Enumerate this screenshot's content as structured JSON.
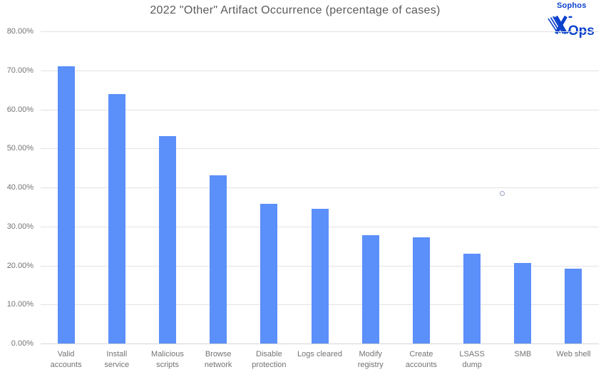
{
  "header": {
    "title": "2022 \"Other\" Artifact Occurrence (percentage of cases)"
  },
  "logo": {
    "brand": "Sophos",
    "x_symbol": "X",
    "suffix": "-Ops"
  },
  "chart_data": {
    "type": "bar",
    "title": "2022 \"Other\" Artifact Occurrence (percentage of cases)",
    "xlabel": "",
    "ylabel": "",
    "categories": [
      "Valid accounts",
      "Install service",
      "Malicious scripts",
      "Browse network",
      "Disable protection",
      "Logs cleared",
      "Modify registry",
      "Create accounts",
      "LSASS dump",
      "SMB",
      "Web shell"
    ],
    "values": [
      71.1,
      63.9,
      53.1,
      43.1,
      35.8,
      34.6,
      27.8,
      27.2,
      23.1,
      20.6,
      19.2
    ],
    "value_unit": "%",
    "ylim": [
      0,
      80
    ],
    "y_tick_step": 10,
    "y_tick_labels": [
      "0.00%",
      "10.00%",
      "20.00%",
      "30.00%",
      "40.00%",
      "50.00%",
      "60.00%",
      "70.00%",
      "80.00%"
    ],
    "grid": "horizontal",
    "legend": "none",
    "stray_marker": {
      "shape": "hollow-circle",
      "value": 38.4,
      "x_fraction": 0.827,
      "note": "small unfilled circle between LSASS dump and SMB columns"
    }
  },
  "colors": {
    "background": "#ffffff",
    "bar": "#5b8ff9",
    "gridline": "#e2e2e2",
    "axis_line": "#d6d6d6",
    "title_text": "#5a5a5a",
    "axis_text": "#737373",
    "logo_blue": "#0a41cc",
    "stray_marker_stroke": "#9aa0bd"
  }
}
